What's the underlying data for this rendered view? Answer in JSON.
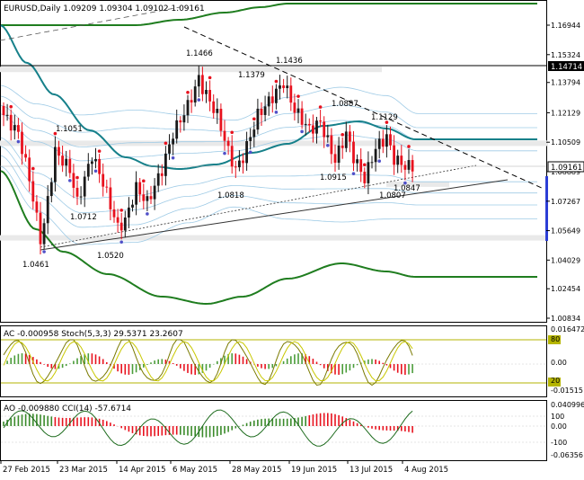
{
  "window": {
    "title": "EURUSD,Daily  1.09209 1.09304 1.09102 1.09161"
  },
  "main_panel": {
    "price_ticks": [
      "1.16944",
      "1.15324",
      "1.13794",
      "1.12129",
      "1.10509",
      "1.08889",
      "1.07267",
      "1.05649",
      "1.04029",
      "1.02454",
      "1.00834"
    ],
    "current_price": "1.09161",
    "hline_price": "1.14714",
    "pivot_labels": [
      "1.1466",
      "1.1436",
      "1.1379",
      "1.0887",
      "1.1129",
      "1.1051",
      "1.0915",
      "1.0818",
      "1.0807",
      "1.0847",
      "1.0712",
      "1.0520",
      "1.0461"
    ]
  },
  "ac_panel": {
    "title": "AC -0.000958  Stoch(5,3,3) 29.5371 23.2607",
    "ticks": [
      "0.016472",
      "80",
      "0.00",
      "20",
      "-0.01515"
    ]
  },
  "ao_panel": {
    "title": "AO -0.009880  CCI(14) -57.6714",
    "ticks": [
      "0.040996",
      "100",
      "0.00",
      "-100",
      "-0.06356"
    ]
  },
  "date_axis": [
    "27 Feb 2015",
    "23 Mar 2015",
    "14 Apr 2015",
    "6 May 2015",
    "28 May 2015",
    "19 Jun 2015",
    "13 Jul 2015",
    "4 Aug 2015"
  ],
  "colors": {
    "bull": "#1a1a1a",
    "bear": "#e8121e",
    "ma": "#16808a",
    "env": "#1f7d1f",
    "stoch": "#b5b500",
    "blue": "#2c3ed6"
  },
  "chart_data": {
    "type": "candlestick",
    "symbol": "EURUSD",
    "timeframe": "Daily",
    "ohlc_last": {
      "open": 1.09209,
      "high": 1.09304,
      "low": 1.09102,
      "close": 1.09161
    },
    "ylim": [
      1.001,
      1.178
    ],
    "pivots": [
      {
        "date": "3 Mar 2015",
        "price": 1.0461
      },
      {
        "date": "11 Mar 2015",
        "price": 1.1051
      },
      {
        "date": "18 Mar 2015",
        "price": 1.0712
      },
      {
        "date": "13 Apr 2015",
        "price": 1.052
      },
      {
        "date": "15 May 2015",
        "price": 1.1466
      },
      {
        "date": "22 May 2015",
        "price": 1.1379
      },
      {
        "date": "27 May 2015",
        "price": 1.0818
      },
      {
        "date": "18 Jun 2015",
        "price": 1.1436
      },
      {
        "date": "3 Jul 2015",
        "price": 1.0915
      },
      {
        "date": "6 Jul 2015",
        "price": 1.0887
      },
      {
        "date": "20 Jul 2015",
        "price": 1.0807
      },
      {
        "date": "23 Jul 2015",
        "price": 1.1129
      },
      {
        "date": "4 Aug 2015",
        "price": 1.0847
      }
    ],
    "stoch_levels": [
      80,
      20
    ],
    "cci_levels": [
      100,
      0,
      -100
    ]
  }
}
